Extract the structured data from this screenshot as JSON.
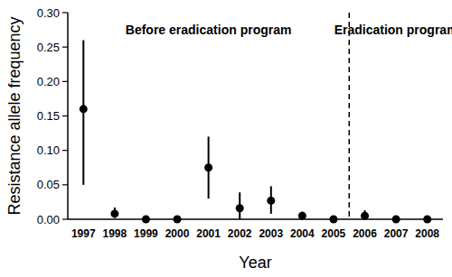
{
  "chart_data": {
    "type": "scatter",
    "x_label": "Year",
    "y_label": "Resistance allele frequency",
    "categories": [
      "1997",
      "1998",
      "1999",
      "2000",
      "2001",
      "2002",
      "2003",
      "2004",
      "2005",
      "2006",
      "2007",
      "2008"
    ],
    "values": [
      0.16,
      0.008,
      0,
      0,
      0.075,
      0.016,
      0.027,
      0.005,
      0,
      0.005,
      0,
      0
    ],
    "lower": [
      0.05,
      0.002,
      0,
      0,
      0.03,
      0,
      0.008,
      0,
      0,
      0,
      0,
      0
    ],
    "upper": [
      0.26,
      0.017,
      0,
      0,
      0.12,
      0.039,
      0.048,
      0.011,
      0,
      0.013,
      0,
      0
    ],
    "color": "#000000",
    "marker": "circle",
    "ylim": [
      0,
      0.3
    ],
    "yticks": [
      {
        "value": 0,
        "label": "0.00"
      },
      {
        "value": 0.05,
        "label": "0.05"
      },
      {
        "value": 0.1,
        "label": "0.10"
      },
      {
        "value": 0.15,
        "label": "0.15"
      },
      {
        "value": 0.2,
        "label": "0.20"
      },
      {
        "value": 0.25,
        "label": "0.25"
      },
      {
        "value": 0.3,
        "label": "0.30"
      }
    ],
    "grid": false,
    "annotations": [
      {
        "text": "Before eradication program",
        "span": [
          "1997",
          "2005"
        ]
      },
      {
        "text": "Eradication program",
        "span": [
          "2006",
          "2008"
        ]
      }
    ]
  }
}
